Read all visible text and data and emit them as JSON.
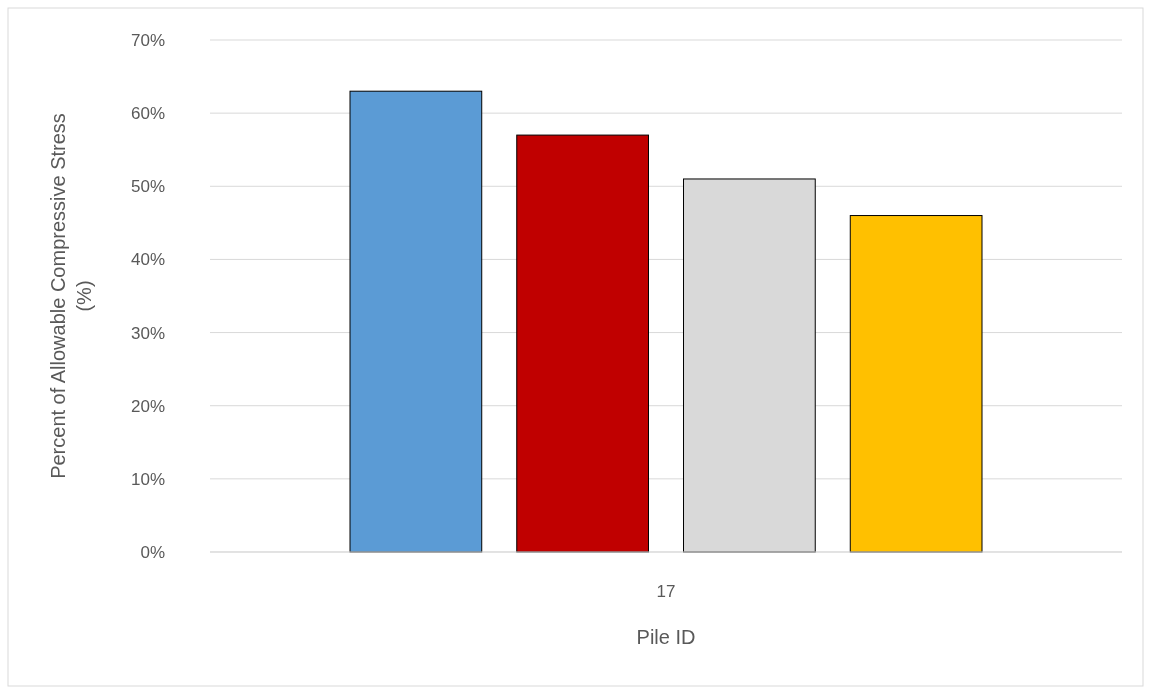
{
  "chart_data": {
    "type": "bar",
    "categories": [
      "17"
    ],
    "series": [
      {
        "color": "#5b9bd5",
        "values": [
          63
        ]
      },
      {
        "color": "#c00000",
        "values": [
          57
        ]
      },
      {
        "color": "#d9d9d9",
        "values": [
          51
        ]
      },
      {
        "color": "#ffc000",
        "values": [
          46
        ]
      }
    ],
    "xlabel": "Pile ID",
    "ylabel": "Percent of Allowable Compressive Stress (%)",
    "ylim": [
      0,
      70
    ],
    "yticks": [
      {
        "value": 0,
        "label": "0%"
      },
      {
        "value": 10,
        "label": "10%"
      },
      {
        "value": 20,
        "label": "20%"
      },
      {
        "value": 30,
        "label": "30%"
      },
      {
        "value": 40,
        "label": "40%"
      },
      {
        "value": 50,
        "label": "50%"
      },
      {
        "value": 60,
        "label": "60%"
      },
      {
        "value": 70,
        "label": "70%"
      }
    ],
    "grid": "y"
  }
}
